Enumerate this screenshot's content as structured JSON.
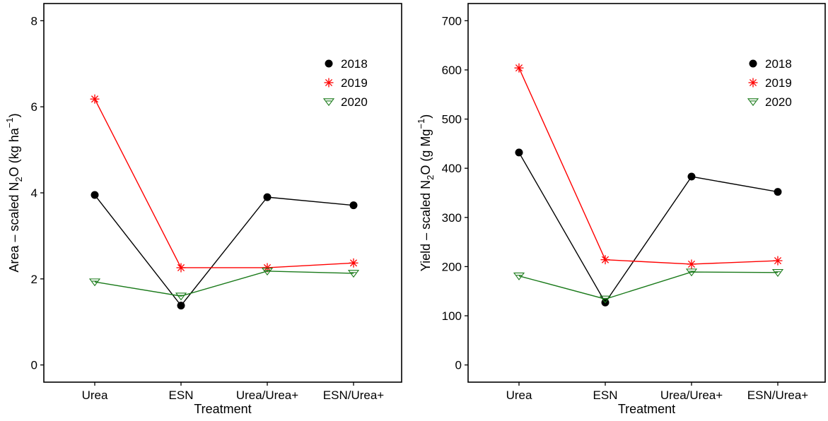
{
  "chart_data": [
    {
      "type": "line",
      "xlabel": "Treatment",
      "ylabel": {
        "base": "Area – scaled N",
        "sub": "2",
        "mid": "O (kg ha",
        "sup": "−1",
        "end": ")"
      },
      "categories": [
        "Urea",
        "ESN",
        "Urea/Urea+",
        "ESN/Urea+"
      ],
      "ylim": [
        -0.4,
        8.4
      ],
      "yticks": [
        0,
        2,
        4,
        6,
        8
      ],
      "grid": false,
      "legend_position": "top-right",
      "series": [
        {
          "name": "2018",
          "color": "#000000",
          "marker": "circle",
          "values": [
            3.95,
            1.38,
            3.9,
            3.71
          ]
        },
        {
          "name": "2019",
          "color": "#ff0000",
          "marker": "asterisk",
          "values": [
            6.18,
            2.26,
            2.26,
            2.37
          ]
        },
        {
          "name": "2020",
          "color": "#1a7a1a",
          "marker": "triangle-down",
          "values": [
            1.93,
            1.6,
            2.18,
            2.13
          ]
        }
      ]
    },
    {
      "type": "line",
      "xlabel": "Treatment",
      "ylabel": {
        "base": "Yield – scaled N",
        "sub": "2",
        "mid": "O (g Mg",
        "sup": "−1",
        "end": ")"
      },
      "categories": [
        "Urea",
        "ESN",
        "Urea/Urea+",
        "ESN/Urea+"
      ],
      "ylim": [
        -35,
        735
      ],
      "yticks": [
        0,
        100,
        200,
        300,
        400,
        500,
        600,
        700
      ],
      "grid": false,
      "legend_position": "top-right",
      "series": [
        {
          "name": "2018",
          "color": "#000000",
          "marker": "circle",
          "values": [
            432,
            127,
            383,
            352
          ]
        },
        {
          "name": "2019",
          "color": "#ff0000",
          "marker": "asterisk",
          "values": [
            604,
            214,
            205,
            212
          ]
        },
        {
          "name": "2020",
          "color": "#1a7a1a",
          "marker": "triangle-down",
          "values": [
            181,
            134,
            189,
            188
          ]
        }
      ]
    }
  ]
}
